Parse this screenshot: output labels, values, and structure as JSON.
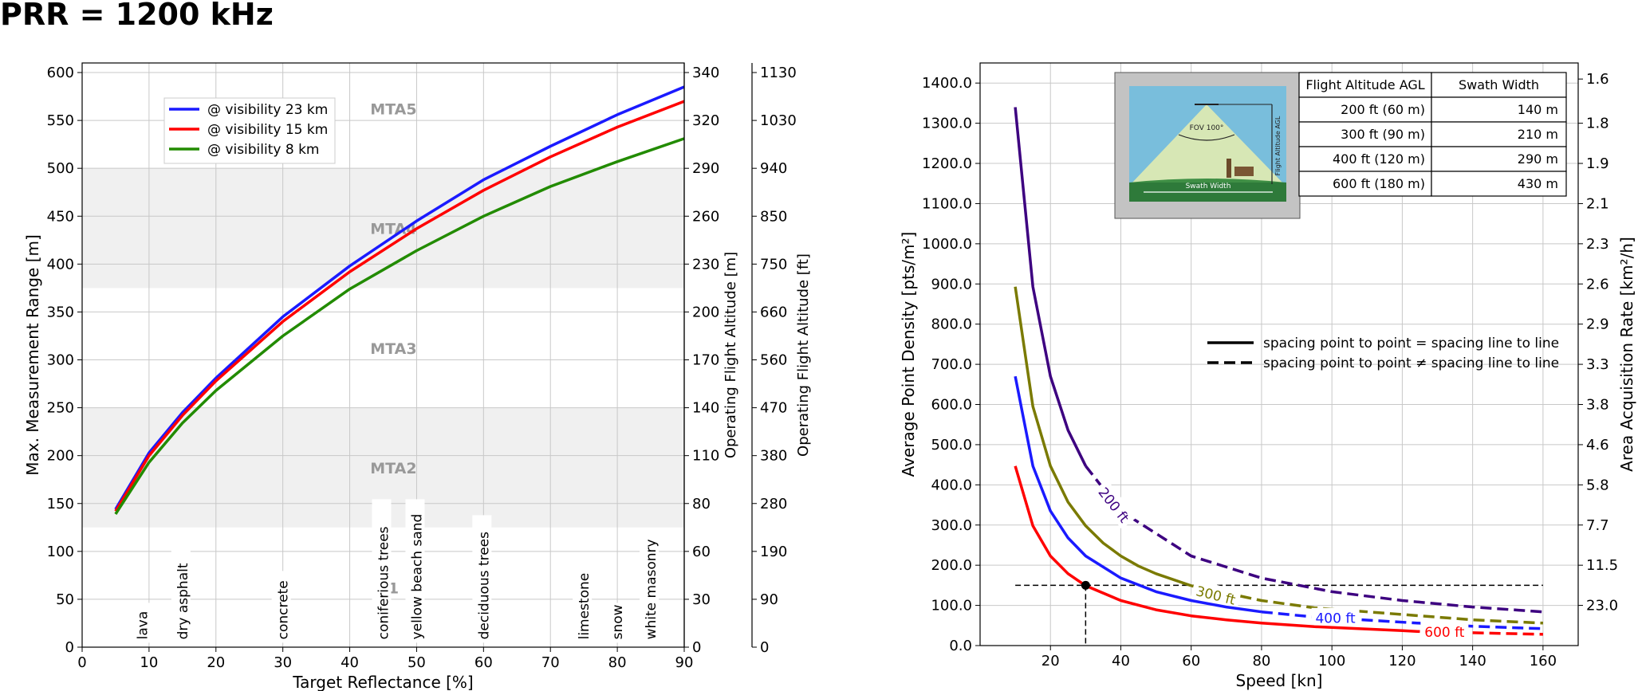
{
  "title": "PRR = 1200 kHz",
  "chart_data": [
    {
      "type": "line",
      "xlabel": "Target Reflectance [%]",
      "ylabel": "Max. Measurement Range [m]",
      "xlim": [
        0,
        90
      ],
      "ylim": [
        0,
        610
      ],
      "xticks": [
        "0",
        "10",
        "20",
        "30",
        "40",
        "50",
        "60",
        "70",
        "80",
        "90"
      ],
      "yticks": [
        "0",
        "50",
        "100",
        "150",
        "200",
        "250",
        "300",
        "350",
        "400",
        "450",
        "500",
        "550",
        "600"
      ],
      "grid": true,
      "legend_position": "top-left",
      "series": [
        {
          "name": "@ visibility 23 km",
          "color": "#1a1aff",
          "x": [
            5,
            10,
            15,
            20,
            30,
            40,
            50,
            60,
            70,
            80,
            90
          ],
          "y": [
            144,
            203,
            245,
            281,
            345,
            398,
            445,
            488,
            523,
            556,
            585
          ]
        },
        {
          "name": "@ visibility 15 km",
          "color": "#ff0000",
          "x": [
            5,
            10,
            15,
            20,
            30,
            40,
            50,
            60,
            70,
            80,
            90
          ],
          "y": [
            142,
            200,
            242,
            278,
            340,
            392,
            437,
            477,
            512,
            543,
            570
          ]
        },
        {
          "name": "@ visibility 8 km",
          "color": "#228b00",
          "x": [
            5,
            10,
            15,
            20,
            30,
            40,
            50,
            60,
            70,
            80,
            90
          ],
          "y": [
            139,
            193,
            234,
            268,
            325,
            374,
            414,
            450,
            481,
            507,
            531
          ]
        }
      ],
      "zones": [
        {
          "label": "MTA5",
          "shaded": false,
          "label_y": 563
        },
        {
          "label": "MTA4",
          "shaded": true,
          "range": [
            375,
            500
          ],
          "label_y": 438
        },
        {
          "label": "MTA3",
          "shaded": false,
          "label_y": 313
        },
        {
          "label": "MTA2",
          "shaded": true,
          "range": [
            125,
            250
          ],
          "label_y": 188
        },
        {
          "label": "1",
          "shaded": false,
          "label_y": 63
        }
      ],
      "materials": [
        {
          "name": "lava",
          "x": 9
        },
        {
          "name": "dry asphalt",
          "x": 15
        },
        {
          "name": "concrete",
          "x": 30
        },
        {
          "name": "coniferious trees",
          "x": 45
        },
        {
          "name": "yellow beach sand",
          "x": 50
        },
        {
          "name": "deciduous trees",
          "x": 60
        },
        {
          "name": "limestone",
          "x": 75
        },
        {
          "name": "snow",
          "x": 80
        },
        {
          "name": "white masonry",
          "x": 85
        }
      ],
      "right_axes": [
        {
          "label": "Operating Flight Altitude [m]",
          "ticks": [
            "0",
            "30",
            "60",
            "80",
            "110",
            "140",
            "170",
            "200",
            "230",
            "260",
            "290",
            "320",
            "340"
          ]
        },
        {
          "label": "Operating Flight Altitude [ft]",
          "ticks": [
            "0",
            "90",
            "190",
            "280",
            "380",
            "470",
            "560",
            "660",
            "750",
            "850",
            "940",
            "1030",
            "1130"
          ]
        }
      ]
    },
    {
      "type": "line",
      "xlabel": "Speed [kn]",
      "ylabel": "Average Point Density [pts/m²]",
      "y2label": "Area Acquisition Rate [km²/h]",
      "xlim": [
        0,
        170
      ],
      "ylim": [
        0,
        1450
      ],
      "xticks": [
        "20",
        "40",
        "60",
        "80",
        "100",
        "120",
        "140",
        "160"
      ],
      "yticks": [
        "0.0",
        "100.0",
        "200.0",
        "300.0",
        "400.0",
        "500.0",
        "600.0",
        "700.0",
        "800.0",
        "900.0",
        "1000.0",
        "1100.0",
        "1200.0",
        "1300.0",
        "1400.0"
      ],
      "y2ticks": [
        "23.0",
        "11.5",
        "7.7",
        "5.8",
        "4.6",
        "3.8",
        "3.3",
        "2.9",
        "2.6",
        "2.3",
        "2.1",
        "1.9",
        "1.8",
        "1.6"
      ],
      "grid": true,
      "series": [
        {
          "name": "200 ft",
          "color": "#3d0080",
          "solid": {
            "x": [
              10,
              15,
              20,
              25,
              30
            ],
            "y": [
              1340,
              893,
              670,
              536,
              447
            ]
          },
          "dashed": {
            "x": [
              30,
              40,
              60,
              80,
              100,
              120,
              140,
              160
            ],
            "y": [
              447,
              335,
              223,
              168,
              134,
              112,
              96,
              84
            ]
          }
        },
        {
          "name": "300 ft",
          "color": "#7a7a00",
          "solid": {
            "x": [
              10,
              15,
              20,
              25,
              30,
              35,
              40,
              45,
              50,
              60
            ],
            "y": [
              893,
              595,
              447,
              357,
              298,
              255,
              223,
              198,
              179,
              149
            ]
          },
          "dashed": {
            "x": [
              60,
              80,
              95,
              140,
              160
            ],
            "y": [
              149,
              112,
              94,
              64,
              56
            ]
          }
        },
        {
          "name": "400 ft",
          "color": "#1a1aff",
          "solid": {
            "x": [
              10,
              15,
              20,
              25,
              30,
              40,
              50,
              60,
              70,
              80
            ],
            "y": [
              670,
              447,
              335,
              268,
              223,
              168,
              134,
              112,
              96,
              84
            ]
          },
          "dashed": {
            "x": [
              80,
              95,
              140,
              160
            ],
            "y": [
              84,
              71,
              48,
              42
            ]
          }
        },
        {
          "name": "600 ft",
          "color": "#ff0000",
          "solid": {
            "x": [
              10,
              15,
              20,
              25,
              30,
              40,
              50,
              60,
              70,
              80,
              95,
              110,
              120,
              125
            ],
            "y": [
              447,
              298,
              223,
              179,
              149,
              112,
              89,
              74,
              64,
              56,
              47,
              41,
              37,
              35
            ]
          },
          "dashed": {
            "x": [
              140,
              160
            ],
            "y": [
              32,
              28
            ]
          }
        }
      ],
      "reference_point": {
        "x": 30,
        "y": 150
      },
      "legend": [
        {
          "style": "solid",
          "label": "spacing point to point = spacing line to line"
        },
        {
          "style": "dashed",
          "label": "spacing point to point ≠ spacing line to line"
        }
      ],
      "inset": {
        "fov_label": "FOV 100°",
        "altitude_label": "Flight Altitude AGL",
        "swath_label": "Swath Width"
      },
      "table": {
        "headers": [
          "Flight Altitude AGL",
          "Swath Width"
        ],
        "rows": [
          [
            "200 ft (60 m)",
            "140 m"
          ],
          [
            "300 ft (90 m)",
            "210 m"
          ],
          [
            "400 ft (120 m)",
            "290 m"
          ],
          [
            "600 ft (180 m)",
            "430 m"
          ]
        ]
      }
    }
  ]
}
